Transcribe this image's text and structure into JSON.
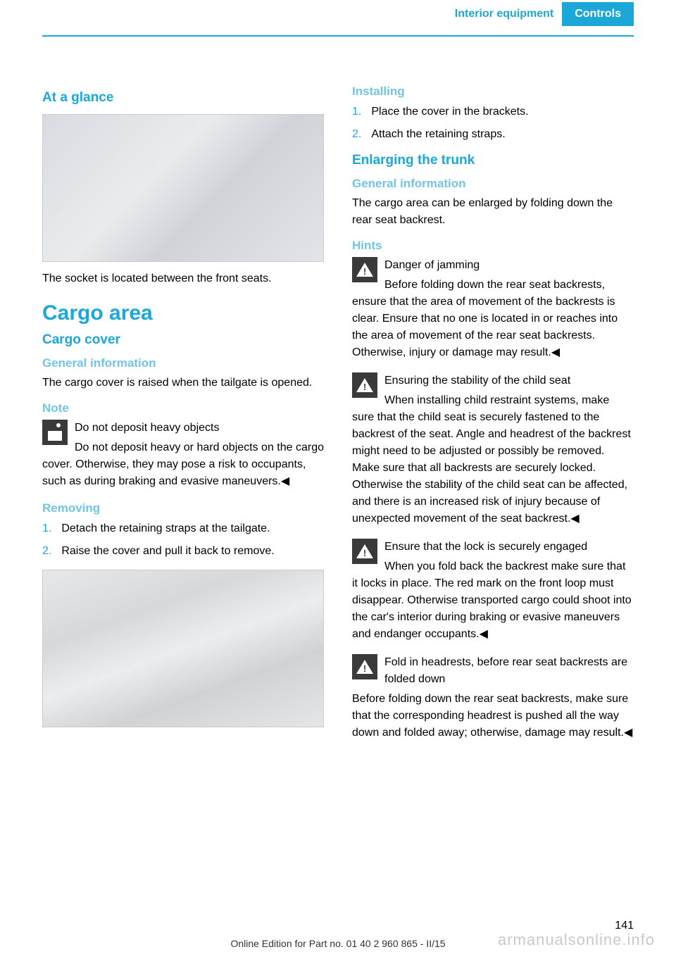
{
  "header": {
    "section": "Interior equipment",
    "chapter": "Controls"
  },
  "leftColumn": {
    "heading1": "At a glance",
    "caption1": "The socket is located between the front seats.",
    "heading2": "Cargo area",
    "heading3": "Cargo cover",
    "heading4": "General information",
    "body1": "The cargo cover is raised when the tailgate is opened.",
    "heading5": "Note",
    "note": {
      "title": "Do not deposit heavy objects",
      "body": "Do not deposit heavy or hard objects on the cargo cover. Otherwise, they may pose a risk to occupants, such as during braking and evasive maneuvers.◀"
    },
    "heading6": "Removing",
    "removing": [
      "Detach the retaining straps at the tailgate.",
      "Raise the cover and pull it back to remove."
    ]
  },
  "rightColumn": {
    "heading1": "Installing",
    "installing": [
      "Place the cover in the brackets.",
      "Attach the retaining straps."
    ],
    "heading2": "Enlarging the trunk",
    "heading3": "General information",
    "body1": "The cargo area can be enlarged by folding down the rear seat backrest.",
    "heading4": "Hints",
    "hints": [
      {
        "title": "Danger of jamming",
        "body": "Before folding down the rear seat backrests, ensure that the area of movement of the backrests is clear. Ensure that no one is located in or reaches into the area of movement of the rear seat backrests. Otherwise, injury or damage may result.◀"
      },
      {
        "title": "Ensuring the stability of the child seat",
        "body": "When installing child restraint systems, make sure that the child seat is securely fastened to the backrest of the seat. Angle and headrest of the backrest might need to be adjusted or possibly be removed. Make sure that all backrests are securely locked. Otherwise the stability of the child seat can be affected, and there is an increased risk of injury because of unexpected movement of the seat backrest.◀"
      },
      {
        "title": "Ensure that the lock is securely engaged",
        "body": "When you fold back the backrest make sure that it locks in place. The red mark on the front loop must disappear. Otherwise transported cargo could shoot into the car's interior during braking or evasive maneuvers and endanger occupants.◀"
      },
      {
        "title": "Fold in headrests, before rear seat backrests are folded down",
        "body": "Before folding down the rear seat backrests, make sure that the corresponding headrest is pushed all the way down and folded away; otherwise, damage may result.◀"
      }
    ]
  },
  "pageNumber": "141",
  "footer": "Online Edition for Part no. 01 40 2 960 865 - II/15",
  "watermark": "armanualsonline.info"
}
